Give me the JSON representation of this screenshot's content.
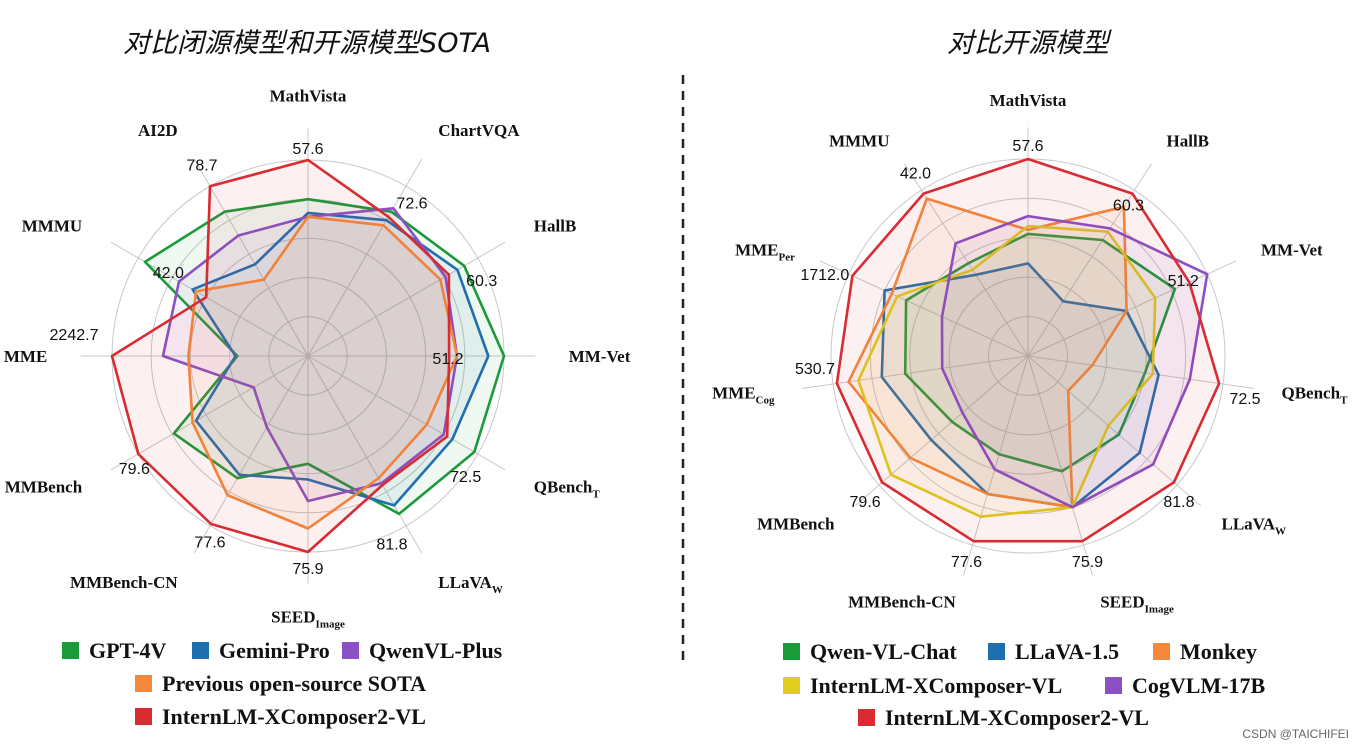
{
  "watermark": "CSDN @TAICHIFEI",
  "colors": {
    "green": "#1b9a3a",
    "blue": "#1f6fb0",
    "purple": "#8a50c4",
    "orange": "#f5883a",
    "yellow": "#e0cd1c",
    "red": "#d92b32",
    "grid": "#c8c8c8",
    "divider": "#222222"
  },
  "chart_data": [
    {
      "type": "radar",
      "title": "对比闭源模型和开源模型SOTA",
      "axes": [
        {
          "name": "MathVista",
          "sub": "",
          "value_label": "57.6"
        },
        {
          "name": "ChartVQA",
          "sub": "",
          "value_label": "72.6"
        },
        {
          "name": "HallB",
          "sub": "",
          "value_label": "60.3"
        },
        {
          "name": "MM-Vet",
          "sub": "",
          "value_label": "51.2"
        },
        {
          "name": "QBench",
          "sub": "T",
          "value_label": "72.5"
        },
        {
          "name": "LLaVA",
          "sub": "W",
          "value_label": "81.8"
        },
        {
          "name": "SEED",
          "sub": "Image",
          "value_label": "75.9"
        },
        {
          "name": "MMBench-CN",
          "sub": "",
          "value_label": "77.6"
        },
        {
          "name": "MMBench",
          "sub": "",
          "value_label": "79.6"
        },
        {
          "name": "MME",
          "sub": "",
          "value_label": "2242.7"
        },
        {
          "name": "MMMU",
          "sub": "",
          "value_label": "42.0"
        },
        {
          "name": "AI2D",
          "sub": "",
          "value_label": "78.7"
        }
      ],
      "rmax": 1.0,
      "series": [
        {
          "name": "GPT-4V",
          "color": "green",
          "values": [
            0.8,
            0.85,
            0.92,
            1.0,
            0.98,
            0.93,
            0.55,
            0.72,
            0.79,
            0.36,
            0.96,
            0.85
          ]
        },
        {
          "name": "Gemini-Pro",
          "color": "blue",
          "values": [
            0.73,
            0.8,
            0.88,
            0.92,
            0.85,
            0.88,
            0.63,
            0.7,
            0.66,
            0.37,
            0.68,
            0.54
          ]
        },
        {
          "name": "QwenVL-Plus",
          "color": "purple",
          "values": [
            0.71,
            0.87,
            0.81,
            0.76,
            0.8,
            0.75,
            0.74,
            0.42,
            0.32,
            0.74,
            0.76,
            0.71
          ]
        },
        {
          "name": "Previous open-source SOTA",
          "color": "orange",
          "values": [
            0.71,
            0.77,
            0.78,
            0.76,
            0.7,
            0.72,
            0.88,
            0.82,
            0.68,
            0.61,
            0.66,
            0.45
          ]
        },
        {
          "name": "InternLM-XComposer2-VL",
          "color": "red",
          "values": [
            1.0,
            0.82,
            0.83,
            0.72,
            0.82,
            0.76,
            1.0,
            0.99,
            1.0,
            1.0,
            0.6,
            1.0
          ]
        }
      ],
      "legend_rows": [
        [
          "GPT-4V",
          "Gemini-Pro",
          "QwenVL-Plus"
        ],
        [
          "Previous open-source SOTA"
        ],
        [
          "InternLM-XComposer2-VL"
        ]
      ]
    },
    {
      "type": "radar",
      "title": "对比开源模型",
      "axes": [
        {
          "name": "MathVista",
          "sub": "",
          "value_label": "57.6"
        },
        {
          "name": "HallB",
          "sub": "",
          "value_label": "60.3"
        },
        {
          "name": "MM-Vet",
          "sub": "",
          "value_label": "51.2"
        },
        {
          "name": "QBench",
          "sub": "T",
          "value_label": "72.5"
        },
        {
          "name": "LLaVA",
          "sub": "W",
          "value_label": "81.8"
        },
        {
          "name": "SEED",
          "sub": "Image",
          "value_label": "75.9"
        },
        {
          "name": "MMBench-CN",
          "sub": "",
          "value_label": "77.6"
        },
        {
          "name": "MMBench",
          "sub": "",
          "value_label": "79.6"
        },
        {
          "name": "MME",
          "sub": "Cog",
          "value_label": "530.7"
        },
        {
          "name": "MME",
          "sub": "Per",
          "value_label": "1712.0"
        },
        {
          "name": "MMMU",
          "sub": "",
          "value_label": "42.0"
        }
      ],
      "rmax": 1.0,
      "series": [
        {
          "name": "Qwen-VL-Chat",
          "color": "green",
          "values": [
            0.62,
            0.7,
            0.82,
            0.6,
            0.61,
            0.61,
            0.52,
            0.51,
            0.63,
            0.68,
            0.56
          ]
        },
        {
          "name": "LLaVA-1.5",
          "color": "blue",
          "values": [
            0.47,
            0.33,
            0.55,
            0.67,
            0.75,
            0.8,
            0.73,
            0.65,
            0.75,
            0.8,
            0.49
          ]
        },
        {
          "name": "Monkey",
          "color": "orange",
          "values": [
            0.64,
            0.9,
            0.55,
            0.33,
            0.27,
            0.8,
            0.73,
            0.79,
            0.92,
            0.76,
            0.95
          ]
        },
        {
          "name": "InternLM-XComposer-VL",
          "color": "yellow",
          "values": [
            0.66,
            0.75,
            0.71,
            0.64,
            0.54,
            0.8,
            0.85,
            0.92,
            0.87,
            0.73,
            0.52
          ]
        },
        {
          "name": "CogVLM-17B",
          "color": "purple",
          "values": [
            0.71,
            0.77,
            1.0,
            0.83,
            0.84,
            0.8,
            0.6,
            0.44,
            0.44,
            0.48,
            0.68
          ]
        },
        {
          "name": "InternLM-XComposer2-VL",
          "color": "red",
          "values": [
            1.0,
            0.98,
            0.9,
            0.98,
            0.98,
            0.98,
            0.98,
            0.98,
            0.98,
            0.98,
            0.98
          ]
        }
      ],
      "legend_rows": [
        [
          "Qwen-VL-Chat",
          "LLaVA-1.5",
          "Monkey"
        ],
        [
          "InternLM-XComposer-VL",
          "CogVLM-17B"
        ],
        [
          "InternLM-XComposer2-VL"
        ]
      ]
    }
  ]
}
